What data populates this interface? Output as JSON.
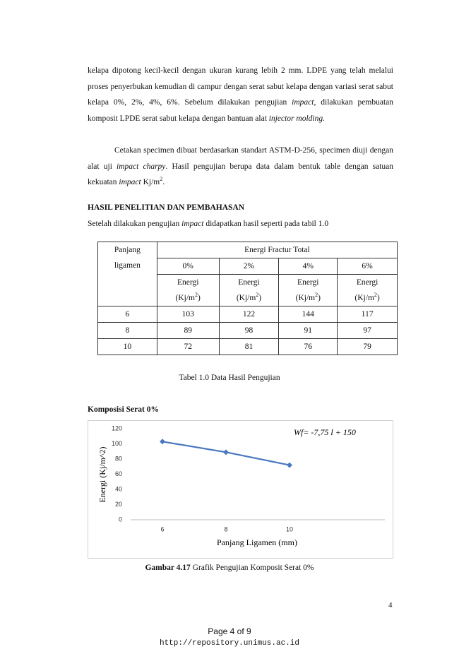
{
  "paragraph1": [
    "kelapa dipotong kecil-kecil dengan ukuran kurang lebih 2 mm. LDPE yang telah melalui proses penyerbukan kemudian di campur dengan serat sabut kelapa dengan variasi serat sabut kelapa 0%, 2%, 4%, 6%. Sebelum dilakukan pengujian ",
    "impact,",
    " dilakukan pembuatan komposit LPDE serat sabut kelapa dengan  bantuan alat ",
    "injector molding."
  ],
  "paragraph2": [
    "Cetakan specimen dibuat berdasarkan standart ASTM-D-256, specimen diuji dengan alat uji ",
    "impact charpy",
    ". Hasil pengujian berupa data dalam bentuk table dengan satuan kekuatan ",
    "impact",
    " Kj/m",
    "2",
    "."
  ],
  "heading": "HASIL PENELITIAN DAN PEMBAHASAN",
  "paragraph3": [
    "Setelah dilakukan pengujian ",
    "impact",
    " didapatkan hasil seperti pada tabil 1.0"
  ],
  "table": {
    "row_header": [
      "Panjang",
      "ligamen"
    ],
    "group_header": "Energi Fractur Total",
    "columns": [
      "0%",
      "2%",
      "4%",
      "6%"
    ],
    "unit": [
      "Energi",
      "(Kj/m",
      "2",
      ")"
    ],
    "rows": [
      [
        6,
        103,
        122,
        144,
        117
      ],
      [
        8,
        89,
        98,
        91,
        97
      ],
      [
        10,
        72,
        81,
        76,
        79
      ]
    ],
    "caption": "Tabel 1.0 Data Hasil Pengujian"
  },
  "section": "Komposisi Serat 0%",
  "chart_data": {
    "type": "line",
    "categories": [
      "6",
      "8",
      "10",
      null
    ],
    "values": [
      103,
      89,
      72,
      null
    ],
    "color": "#4a78c0",
    "ylim": [
      0,
      120
    ],
    "yticks": [
      0,
      20,
      40,
      60,
      80,
      100,
      120
    ],
    "grid": false,
    "xlabel": "Panjang Ligamen (mm)",
    "ylabel": "Energi (Kj/m^2)",
    "annotation": "Wf= -7,75 l + 150"
  },
  "figure_caption": [
    "Gambar 4.17",
    " Grafik Pengujian Komposit Serat 0%"
  ],
  "footer": {
    "page_number": "4",
    "page_of": "Page 4 of 9",
    "url": "http://repository.unimus.ac.id"
  }
}
